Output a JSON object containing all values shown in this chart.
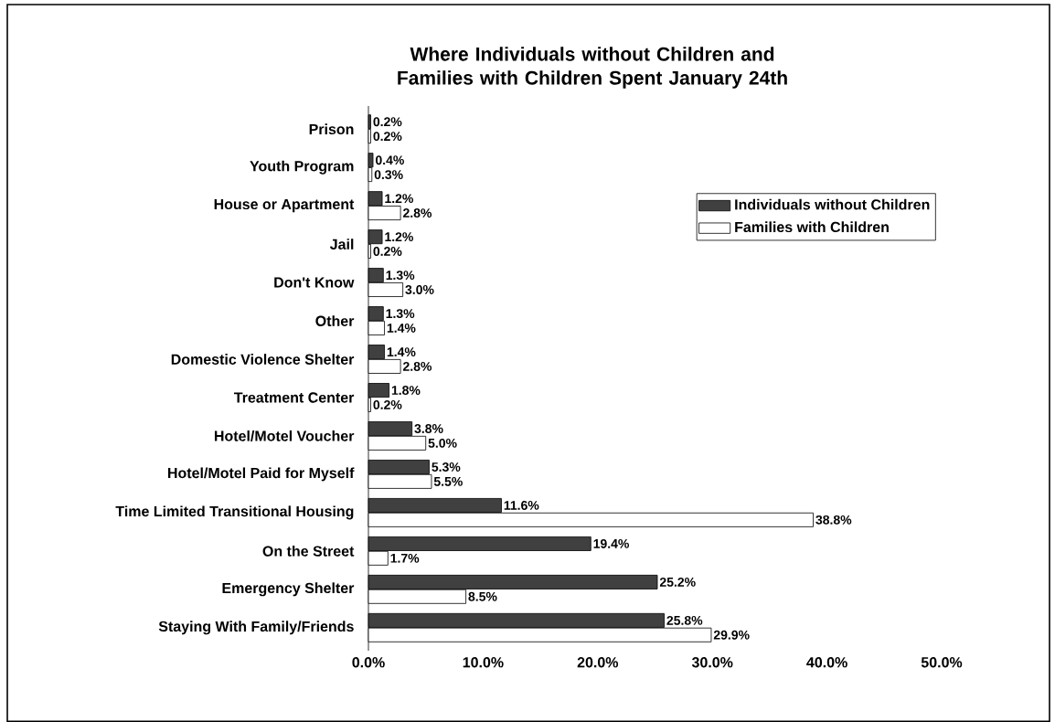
{
  "chart_data": {
    "type": "bar",
    "orientation": "horizontal",
    "title": "Where Individuals without Children and Families with Children Spent January 24th",
    "categories": [
      "Prison",
      "Youth Program",
      "House or Apartment",
      "Jail",
      "Don't Know",
      "Other",
      "Domestic Violence Shelter",
      "Treatment Center",
      "Hotel/Motel Voucher",
      "Hotel/Motel Paid for Myself",
      "Time Limited Transitional Housing",
      "On the Street",
      "Emergency Shelter",
      "Staying With Family/Friends"
    ],
    "series": [
      {
        "name": "Individuals without Children",
        "color": "#404040",
        "values": [
          0.2,
          0.4,
          1.2,
          1.2,
          1.3,
          1.3,
          1.4,
          1.8,
          3.8,
          5.3,
          11.6,
          19.4,
          25.2,
          25.8
        ],
        "value_labels": [
          "0.2%",
          "0.4%",
          "1.2%",
          "1.2%",
          "1.3%",
          "1.3%",
          "1.4%",
          "1.8%",
          "3.8%",
          "5.3%",
          "11.6%",
          "19.4%",
          "25.2%",
          "25.8%"
        ]
      },
      {
        "name": "Families with Children",
        "color": "#ffffff",
        "values": [
          0.2,
          0.3,
          2.8,
          0.2,
          3.0,
          1.4,
          2.8,
          0.2,
          5.0,
          5.5,
          38.8,
          1.7,
          8.5,
          29.9
        ],
        "value_labels": [
          "0.2%",
          "0.3%",
          "2.8%",
          "0.2%",
          "3.0%",
          "1.4%",
          "2.8%",
          "0.2%",
          "5.0%",
          "5.5%",
          "38.8%",
          "1.7%",
          "8.5%",
          "29.9%"
        ]
      }
    ],
    "xlim": [
      0,
      50
    ],
    "xticks": [
      {
        "value": 0,
        "label": "0.0%"
      },
      {
        "value": 10,
        "label": "10.0%"
      },
      {
        "value": 20,
        "label": "20.0%"
      },
      {
        "value": 30,
        "label": "30.0%"
      },
      {
        "value": 40,
        "label": "40.0%"
      },
      {
        "value": 50,
        "label": "50.0%"
      }
    ],
    "legend": "top right",
    "grid": false
  }
}
